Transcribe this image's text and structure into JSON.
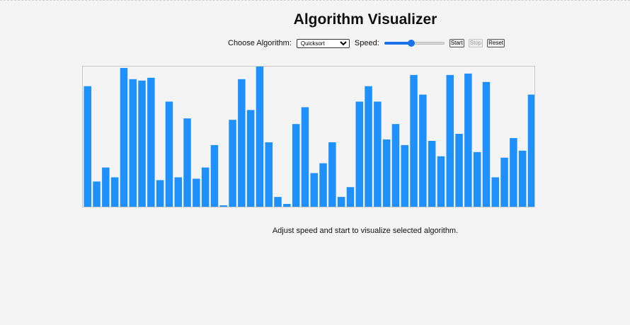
{
  "title": "Algorithm Visualizer",
  "controls": {
    "algorithm_label": "Choose Algorithm:",
    "algorithm_selected": "Quicksort",
    "speed_label": "Speed:",
    "speed_fraction": 0.45,
    "start_label": "Start",
    "stop_label": "Stop",
    "reset_label": "Reset"
  },
  "status_text": "Adjust speed and start to visualize selected algorithm.",
  "bar_color": "#1e90ff",
  "array_values": [
    86,
    18,
    28,
    21,
    99,
    91,
    90,
    92,
    19,
    75,
    21,
    63,
    20,
    28,
    44,
    1,
    62,
    91,
    69,
    100,
    46,
    7,
    2,
    59,
    71,
    24,
    31,
    46,
    7,
    14,
    75,
    86,
    75,
    48,
    59,
    44,
    94,
    80,
    47,
    36,
    94,
    52,
    95,
    39,
    89,
    21,
    35,
    49,
    40,
    80
  ]
}
